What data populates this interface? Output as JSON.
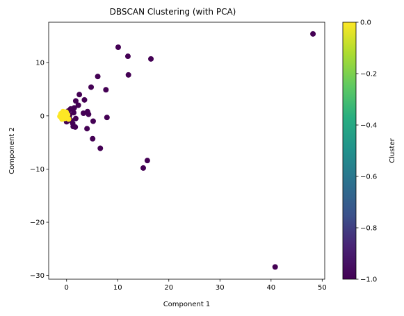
{
  "chart_data": {
    "type": "scatter",
    "title": "DBSCAN Clustering (with PCA)",
    "xlabel": "Component 1",
    "ylabel": "Component 2",
    "xlim": [
      -3.5,
      50.5
    ],
    "ylim": [
      -30.7,
      17.6
    ],
    "xticks": [
      0,
      10,
      20,
      30,
      40,
      50
    ],
    "yticks": [
      -30,
      -20,
      -10,
      0,
      10
    ],
    "grid": false,
    "colorbar": {
      "label": "Cluster",
      "range": [
        -1.0,
        0.0
      ],
      "ticks": [
        0.0,
        -0.2,
        -0.4,
        -0.6,
        -0.8,
        -1.0
      ],
      "colormap": "viridis"
    },
    "colors": {
      "noise": "#440154",
      "cluster_0": "#fde725"
    },
    "series": [
      {
        "cluster": -1,
        "points": [
          [
            48.2,
            15.4
          ],
          [
            10.1,
            12.9
          ],
          [
            12.0,
            11.2
          ],
          [
            16.5,
            10.7
          ],
          [
            12.1,
            7.7
          ],
          [
            6.1,
            7.4
          ],
          [
            4.8,
            5.4
          ],
          [
            7.7,
            4.9
          ],
          [
            2.5,
            4.0
          ],
          [
            3.5,
            3.0
          ],
          [
            1.8,
            2.8
          ],
          [
            2.3,
            2.0
          ],
          [
            1.5,
            1.5
          ],
          [
            0.8,
            1.3
          ],
          [
            4.1,
            0.8
          ],
          [
            3.3,
            0.5
          ],
          [
            4.3,
            0.3
          ],
          [
            7.9,
            -0.3
          ],
          [
            1.4,
            0.6
          ],
          [
            0.5,
            -0.2
          ],
          [
            1.8,
            -0.5
          ],
          [
            0.9,
            -0.9
          ],
          [
            1.2,
            -1.4
          ],
          [
            0.0,
            -1.1
          ],
          [
            5.2,
            -1.0
          ],
          [
            4.0,
            -2.4
          ],
          [
            1.3,
            -2.0
          ],
          [
            1.7,
            -2.1
          ],
          [
            5.1,
            -4.3
          ],
          [
            6.6,
            -6.1
          ],
          [
            15.8,
            -8.4
          ],
          [
            15.0,
            -9.8
          ],
          [
            40.8,
            -28.4
          ],
          [
            0.3,
            0.9
          ],
          [
            -0.2,
            -0.6
          ],
          [
            0.6,
            0.2
          ]
        ]
      },
      {
        "cluster": 0,
        "points": [
          [
            -0.5,
            0.6
          ],
          [
            -1.0,
            0.2
          ],
          [
            -1.3,
            -0.1
          ],
          [
            -0.8,
            -0.3
          ],
          [
            -0.3,
            0.1
          ],
          [
            -0.6,
            -0.2
          ],
          [
            -1.1,
            0.4
          ],
          [
            -0.2,
            0.5
          ],
          [
            0.0,
            -0.3
          ],
          [
            -0.7,
            0.8
          ],
          [
            -0.4,
            -0.5
          ],
          [
            0.2,
            0.2
          ],
          [
            0.4,
            -0.6
          ],
          [
            -0.9,
            -0.6
          ],
          [
            0.1,
            -0.1
          ],
          [
            -1.2,
            0.0
          ],
          [
            -0.6,
            0.3
          ],
          [
            -0.1,
            0.7
          ]
        ]
      }
    ]
  }
}
